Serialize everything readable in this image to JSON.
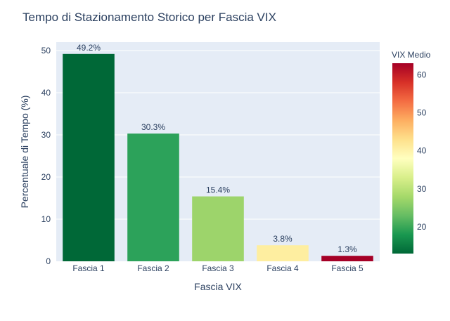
{
  "chart_data": {
    "type": "bar",
    "title": "Tempo di Stazionamento Storico per Fascia VIX",
    "xlabel": "Fascia VIX",
    "ylabel": "Percentuale di Tempo (%)",
    "categories": [
      "Fascia 1",
      "Fascia 2",
      "Fascia 3",
      "Fascia 4",
      "Fascia 5"
    ],
    "values": [
      49.2,
      30.3,
      15.4,
      3.8,
      1.3
    ],
    "value_labels": [
      "49.2%",
      "30.3%",
      "15.4%",
      "3.8%",
      "1.3%"
    ],
    "bar_colors": [
      "#006837",
      "#2ca25a",
      "#9dd46b",
      "#feeea0",
      "#a50026"
    ],
    "vix_medio": [
      13,
      18,
      25,
      38,
      63
    ],
    "ylim": [
      0,
      52
    ],
    "yticks": [
      0,
      10,
      20,
      30,
      40,
      50
    ],
    "grid": true,
    "plot_background": "#e5ecf6",
    "colorbar": {
      "title": "VIX Medio",
      "range": [
        13,
        63
      ],
      "ticks": [
        20,
        30,
        40,
        50,
        60
      ],
      "colorscale": "RdYlGn_r"
    }
  }
}
